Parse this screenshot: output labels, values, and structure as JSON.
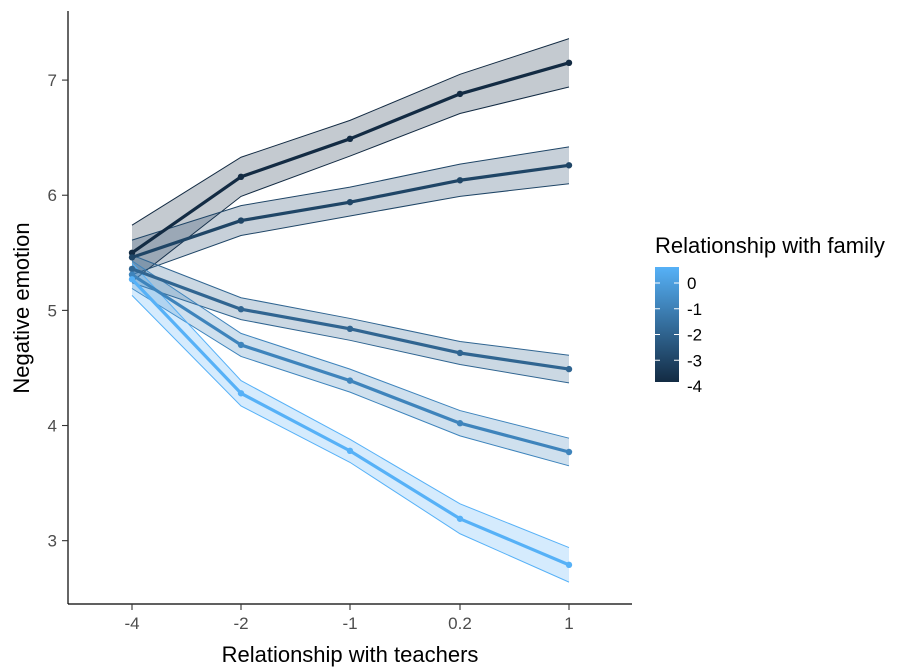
{
  "chart_data": {
    "type": "line",
    "xlabel": "Relationship with teachers",
    "ylabel": "Negative emotion",
    "categories": [
      "-4",
      "-2",
      "-1",
      "0.2",
      "1"
    ],
    "ylim": [
      2.45,
      7.6
    ],
    "yticks": [
      3,
      4,
      5,
      6,
      7
    ],
    "grid": false,
    "legend": {
      "title": "Relationship with family",
      "position": "right",
      "type": "colorbar",
      "labels": [
        "0",
        "-1",
        "-2",
        "-3",
        "-4"
      ],
      "color_low": "#132B43",
      "color_high": "#56B1F7"
    },
    "series": [
      {
        "family": "-4",
        "color": "#132B43",
        "values": [
          5.5,
          6.16,
          6.49,
          6.88,
          7.15
        ],
        "lower": [
          5.25,
          5.99,
          6.34,
          6.71,
          6.94
        ],
        "upper": [
          5.74,
          6.33,
          6.65,
          7.05,
          7.36
        ]
      },
      {
        "family": "-3",
        "color": "#1F4566",
        "values": [
          5.46,
          5.78,
          5.94,
          6.13,
          6.26
        ],
        "lower": [
          5.31,
          5.65,
          5.82,
          5.99,
          6.1
        ],
        "upper": [
          5.61,
          5.91,
          6.07,
          6.27,
          6.42
        ]
      },
      {
        "family": "-2",
        "color": "#306591",
        "values": [
          5.36,
          5.01,
          4.84,
          4.63,
          4.49
        ],
        "lower": [
          5.24,
          4.92,
          4.74,
          4.53,
          4.37
        ],
        "upper": [
          5.48,
          5.11,
          4.93,
          4.73,
          4.61
        ]
      },
      {
        "family": "-1",
        "color": "#3E84BC",
        "values": [
          5.31,
          4.7,
          4.39,
          4.02,
          3.77
        ],
        "lower": [
          5.19,
          4.6,
          4.29,
          3.91,
          3.65
        ],
        "upper": [
          5.43,
          4.8,
          4.49,
          4.13,
          3.89
        ]
      },
      {
        "family": "0",
        "color": "#56B1F7",
        "values": [
          5.27,
          4.28,
          3.78,
          3.19,
          2.79
        ],
        "lower": [
          5.13,
          4.17,
          3.68,
          3.06,
          2.64
        ],
        "upper": [
          5.41,
          4.39,
          3.88,
          3.32,
          2.94
        ]
      }
    ]
  }
}
